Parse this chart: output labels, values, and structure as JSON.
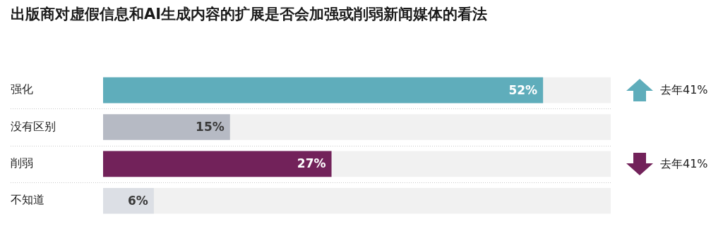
{
  "chart_data": {
    "type": "bar",
    "orientation": "horizontal",
    "title": "出版商对虚假信息和AI生成内容的扩展是否会加强或削弱新闻媒体的看法",
    "categories": [
      "强化",
      "没有区别",
      "削弱",
      "不知道"
    ],
    "values": [
      52,
      15,
      27,
      6
    ],
    "colors": [
      "#5fadbb",
      "#b6bac4",
      "#72225a",
      "#dcdfe5"
    ],
    "value_labels": [
      "52%",
      "15%",
      "27%",
      "6%"
    ],
    "xlim": [
      0,
      60
    ],
    "tick_labels": "y",
    "legend": false,
    "annotations": [
      "去年41%",
      "去年41%"
    ]
  }
}
